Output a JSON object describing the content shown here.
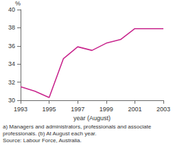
{
  "chart_data": {
    "type": "line",
    "x": [
      1993,
      1994,
      1995,
      1996,
      1997,
      1998,
      1999,
      2000,
      2001,
      2002,
      2003
    ],
    "values": [
      31.5,
      31.0,
      30.3,
      34.6,
      35.9,
      35.5,
      36.3,
      36.7,
      37.9,
      37.9,
      37.9
    ],
    "color": "#c8248c",
    "xlim": [
      1993,
      2003
    ],
    "xticks": [
      1993,
      1995,
      1997,
      1999,
      2001,
      2003
    ],
    "ylim": [
      30,
      40
    ],
    "yticks": [
      30,
      32,
      34,
      36,
      38,
      40
    ],
    "x_label": "year (August)",
    "y_label": "%",
    "notes": [
      "a) Managers and administrators, professionals and associate",
      "professionals. (b) At August each year.",
      "Source: Labour Force, Australia."
    ],
    "grid": false
  }
}
